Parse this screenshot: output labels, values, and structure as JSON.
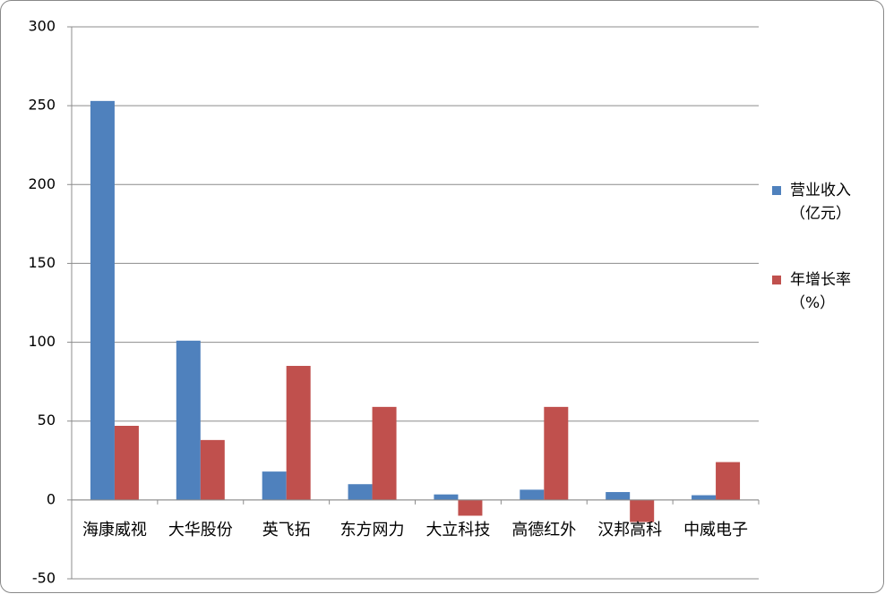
{
  "chart_data": {
    "type": "bar",
    "categories": [
      "海康威视",
      "大华股份",
      "英飞拓",
      "东方网力",
      "大立科技",
      "高德红外",
      "汉邦高科",
      "中威电子"
    ],
    "series": [
      {
        "name": "营业收入（亿元）",
        "color": "#4f81bd",
        "values": [
          253,
          101,
          18,
          10,
          3.5,
          6.5,
          5,
          3
        ]
      },
      {
        "name": "年增长率（%）",
        "color": "#c0504d",
        "values": [
          47,
          38,
          85,
          59,
          -10,
          59,
          -14,
          24
        ]
      }
    ],
    "ylim": [
      -50,
      300
    ],
    "yticks": [
      -50,
      0,
      50,
      100,
      150,
      200,
      250,
      300
    ],
    "grid": true,
    "legend": "right"
  }
}
